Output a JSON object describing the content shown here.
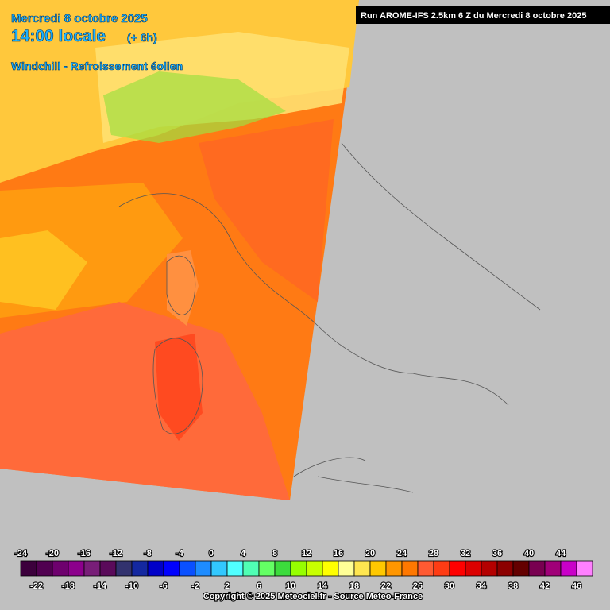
{
  "header": {
    "date": "Mercredi 8 octobre 2025",
    "time": "14:00 locale",
    "offset": "(+ 6h)",
    "parameter": "Windchill - Refroissement éolien",
    "run": "Run AROME-IFS 2.5km 6 Z du Mercredi 8 octobre 2025"
  },
  "legend": {
    "values": [
      -24,
      -22,
      -20,
      -18,
      -16,
      -14,
      -12,
      -10,
      -8,
      -6,
      -4,
      -2,
      0,
      2,
      4,
      6,
      8,
      10,
      12,
      14,
      16,
      18,
      20,
      22,
      24,
      26,
      28,
      30,
      32,
      34,
      36,
      38,
      40,
      42,
      44,
      46
    ],
    "colors": [
      "#3c003c",
      "#500050",
      "#6e006e",
      "#8c008c",
      "#781e78",
      "#5a0a5a",
      "#32326e",
      "#1428a0",
      "#0000c8",
      "#0000ff",
      "#0a50ff",
      "#1e8cff",
      "#32c8ff",
      "#50ffff",
      "#50ffb4",
      "#64ff64",
      "#3cdc3c",
      "#96ff00",
      "#c8ff00",
      "#ffff00",
      "#ffff96",
      "#ffe650",
      "#ffc800",
      "#ff9600",
      "#ff7800",
      "#ff5a32",
      "#ff3c14",
      "#ff0000",
      "#dc0000",
      "#b40000",
      "#8c0000",
      "#640000",
      "#780050",
      "#a00078",
      "#c800c8",
      "#ff80ff"
    ]
  },
  "footer": {
    "copyright": "Copyright © 2025 Meteociel.fr - Source Meteo-France"
  }
}
